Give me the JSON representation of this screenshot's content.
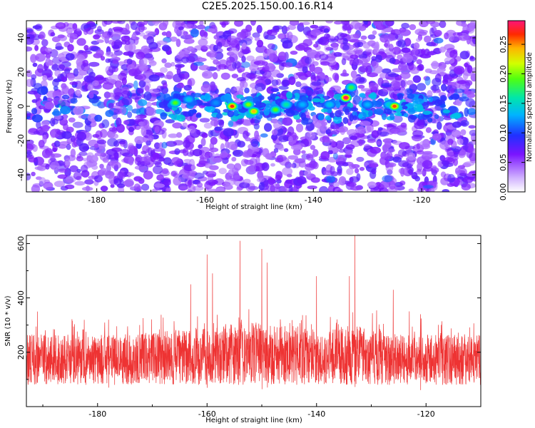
{
  "title": "C2E5.2025.150.00.16.R14",
  "chart_data": [
    {
      "type": "heatmap",
      "xlabel": "Height of straight line (km)",
      "ylabel": "Frequency (Hz)",
      "xlim": [
        -193,
        -110
      ],
      "ylim": [
        -50,
        50
      ],
      "xticks": [
        -180,
        -160,
        -140,
        -120
      ],
      "yticks": [
        -40,
        -20,
        0,
        20,
        40
      ],
      "colorbar": {
        "label": "Normalized spectral amplitude",
        "range": [
          0,
          0.29
        ],
        "ticks": [
          0.0,
          0.05,
          0.1,
          0.15,
          0.2,
          0.25
        ],
        "tick_labels": [
          "0.00",
          "0.05",
          "0.10",
          "0.15",
          "0.20",
          "0.25"
        ]
      },
      "hotspots": [
        {
          "x": -165.5,
          "y": 2,
          "value": 0.19
        },
        {
          "x": -163,
          "y": 4,
          "value": 0.14
        },
        {
          "x": -158,
          "y": 2,
          "value": 0.12
        },
        {
          "x": -155,
          "y": 0,
          "value": 0.27
        },
        {
          "x": -152,
          "y": 1,
          "value": 0.2
        },
        {
          "x": -151,
          "y": -3,
          "value": 0.24
        },
        {
          "x": -147,
          "y": -2,
          "value": 0.19
        },
        {
          "x": -145,
          "y": 1,
          "value": 0.16
        },
        {
          "x": -142,
          "y": 1,
          "value": 0.13
        },
        {
          "x": -137,
          "y": 1,
          "value": 0.14
        },
        {
          "x": -134,
          "y": 5,
          "value": 0.29
        },
        {
          "x": -133,
          "y": 11,
          "value": 0.18
        },
        {
          "x": -130,
          "y": 1,
          "value": 0.13
        },
        {
          "x": -126,
          "y": 1,
          "value": 0.15
        },
        {
          "x": -125,
          "y": 0,
          "value": 0.26
        }
      ]
    },
    {
      "type": "line",
      "xlabel": "Height of straight line (km)",
      "ylabel": "SNR (10 * v/v)",
      "xlim": [
        -193,
        -110
      ],
      "ylim": [
        0,
        630
      ],
      "xticks": [
        -180,
        -160,
        -140,
        -120
      ],
      "yticks": [
        200,
        400,
        600
      ],
      "color": "#ee3333",
      "peaks": [
        {
          "x": -191,
          "y": 350
        },
        {
          "x": -178,
          "y": 320
        },
        {
          "x": -163,
          "y": 450
        },
        {
          "x": -160,
          "y": 560
        },
        {
          "x": -159,
          "y": 490
        },
        {
          "x": -154,
          "y": 610
        },
        {
          "x": -150,
          "y": 580
        },
        {
          "x": -149,
          "y": 530
        },
        {
          "x": -140,
          "y": 480
        },
        {
          "x": -134,
          "y": 480
        },
        {
          "x": -133,
          "y": 630
        },
        {
          "x": -126,
          "y": 430
        },
        {
          "x": -121,
          "y": 340
        }
      ]
    }
  ]
}
